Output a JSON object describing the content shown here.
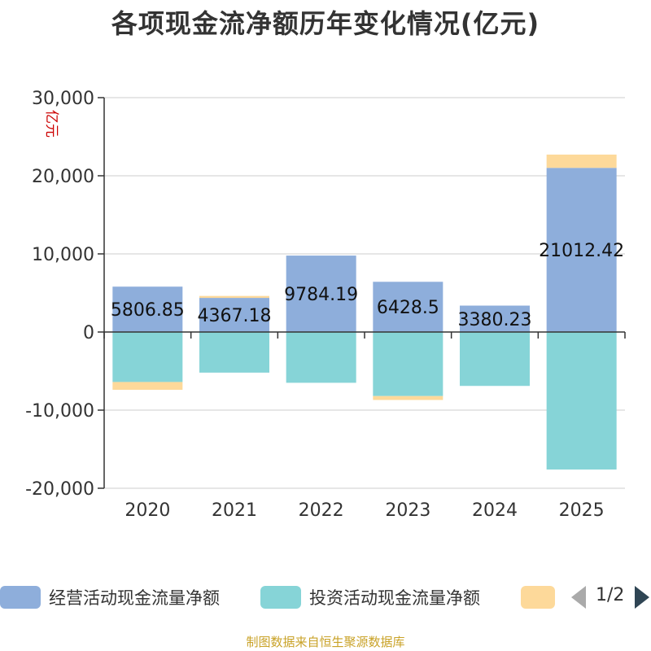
{
  "title": "各项现金流净额历年变化情况(亿元)",
  "unit_label": "亿元",
  "source": "制图数据来自恒生聚源数据库",
  "legend": {
    "items": [
      {
        "label": "经营活动现金流量净额",
        "color": "#8eaedb"
      },
      {
        "label": "投资活动现金流量净额",
        "color": "#86d4d7"
      },
      {
        "label": "",
        "color": "#fdd99a"
      }
    ],
    "page": "1/2"
  },
  "chart_data": {
    "type": "bar",
    "stacked": true,
    "categories": [
      "2020",
      "2021",
      "2022",
      "2023",
      "2024",
      "2025"
    ],
    "ylim": [
      -20000,
      30000
    ],
    "yticks": [
      -20000,
      -10000,
      0,
      10000,
      20000,
      30000
    ],
    "ytick_labels": [
      "-20,000",
      "-10,000",
      "0",
      "10,000",
      "20,000",
      "30,000"
    ],
    "grid": true,
    "legend_position": "bottom",
    "series": [
      {
        "name": "经营活动现金流量净额",
        "color": "#8eaedb",
        "values": [
          5806.85,
          4367.18,
          9784.19,
          6428.5,
          3380.23,
          21012.42
        ]
      },
      {
        "name": "投资活动现金流量净额",
        "color": "#86d4d7",
        "values": [
          -6400,
          -5200,
          -6500,
          -8200,
          -6900,
          -17600
        ]
      },
      {
        "color": "#fdd99a",
        "values": [
          -1000,
          250,
          0,
          -500,
          0,
          1700
        ]
      }
    ],
    "data_labels": [
      "5806.85",
      "4367.18",
      "9784.19",
      "6428.5",
      "3380.23",
      "21012.42"
    ]
  }
}
